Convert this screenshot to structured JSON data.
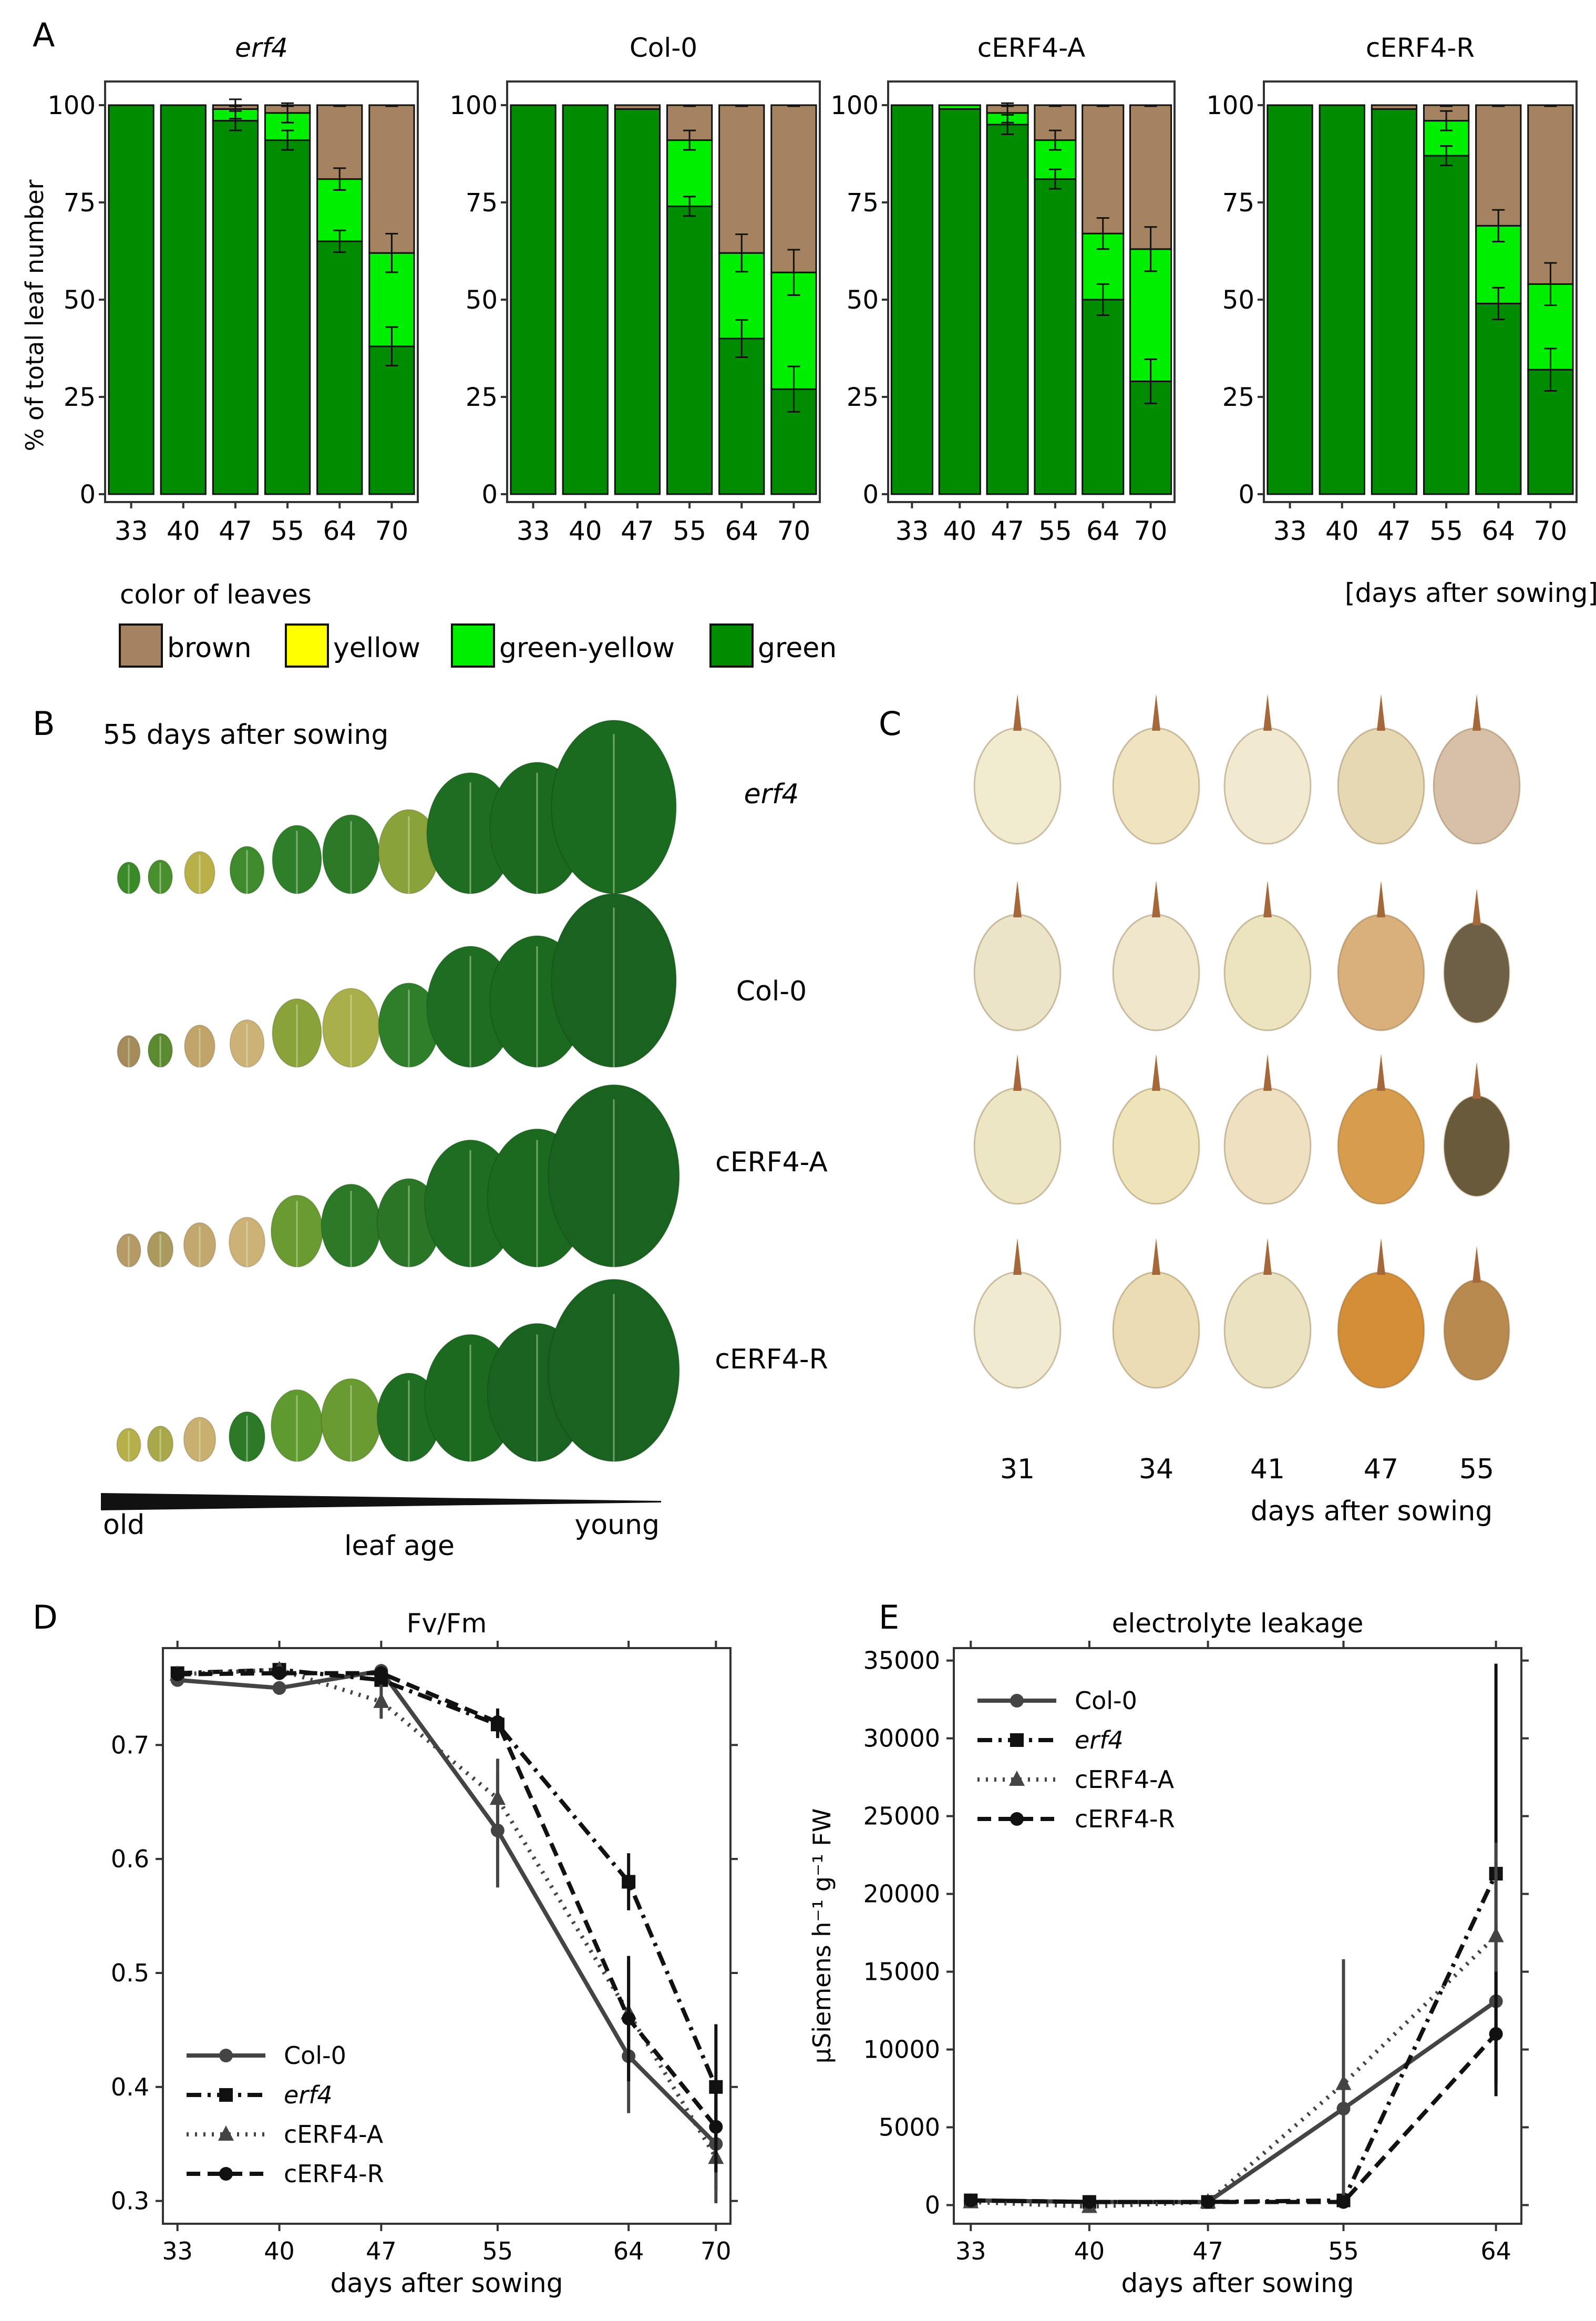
{
  "panel_letters": {
    "a": "A",
    "b": "B",
    "c": "C",
    "d": "D",
    "e": "E"
  },
  "colors": {
    "brown": "#a58360",
    "yellow": "#ffff00",
    "green_yellow": "#00ee00",
    "green": "#008c00",
    "line": "#111111",
    "gray_line": "#444444"
  },
  "panelA": {
    "ylabel": "% of total leaf number",
    "xlabel": "[days after sowing]",
    "legend_title": "color of leaves",
    "legend": [
      {
        "key": "brown",
        "label": "brown"
      },
      {
        "key": "yellow",
        "label": "yellow"
      },
      {
        "key": "green_yellow",
        "label": "green-yellow"
      },
      {
        "key": "green",
        "label": "green"
      }
    ]
  },
  "panelB": {
    "title": "55 days after sowing",
    "rows": [
      {
        "label": "erf4",
        "italic": true
      },
      {
        "label": "Col-0",
        "italic": false
      },
      {
        "label": "cERF4-A",
        "italic": false
      },
      {
        "label": "cERF4-R",
        "italic": false
      }
    ],
    "age_old": "old",
    "age_label": "leaf age",
    "age_young": "young"
  },
  "panelC": {
    "days": [
      "31",
      "34",
      "41",
      "47",
      "55"
    ],
    "xlabel": "days after sowing"
  },
  "chart_data": [
    {
      "type": "bar",
      "stacked": true,
      "title": "erf4",
      "title_italic": true,
      "categories": [
        "33",
        "40",
        "47",
        "55",
        "64",
        "70"
      ],
      "ylim": [
        0,
        100
      ],
      "yticks": [
        "0",
        "25",
        "50",
        "75",
        "100"
      ],
      "series": [
        {
          "name": "green",
          "values": [
            100,
            100,
            96,
            91,
            65,
            38
          ]
        },
        {
          "name": "green-yellow",
          "values": [
            0,
            0,
            3,
            7,
            16,
            24
          ]
        },
        {
          "name": "yellow",
          "values": [
            0,
            0,
            0,
            0,
            0,
            0
          ]
        },
        {
          "name": "brown",
          "values": [
            0,
            0,
            1,
            2,
            19,
            38
          ]
        }
      ]
    },
    {
      "type": "bar",
      "stacked": true,
      "title": "Col-0",
      "title_italic": false,
      "categories": [
        "33",
        "40",
        "47",
        "55",
        "64",
        "70"
      ],
      "ylim": [
        0,
        100
      ],
      "yticks": [
        "0",
        "25",
        "50",
        "75",
        "100"
      ],
      "series": [
        {
          "name": "green",
          "values": [
            100,
            100,
            99,
            74,
            40,
            27
          ]
        },
        {
          "name": "green-yellow",
          "values": [
            0,
            0,
            0,
            17,
            22,
            30
          ]
        },
        {
          "name": "yellow",
          "values": [
            0,
            0,
            0,
            0,
            0,
            0
          ]
        },
        {
          "name": "brown",
          "values": [
            0,
            0,
            1,
            9,
            38,
            43
          ]
        }
      ]
    },
    {
      "type": "bar",
      "stacked": true,
      "title": "cERF4-A",
      "title_italic": false,
      "categories": [
        "33",
        "40",
        "47",
        "55",
        "64",
        "70"
      ],
      "ylim": [
        0,
        100
      ],
      "yticks": [
        "0",
        "25",
        "50",
        "75",
        "100"
      ],
      "series": [
        {
          "name": "green",
          "values": [
            100,
            99,
            95,
            81,
            50,
            29
          ]
        },
        {
          "name": "green-yellow",
          "values": [
            0,
            1,
            3,
            10,
            17,
            34
          ]
        },
        {
          "name": "yellow",
          "values": [
            0,
            0,
            0,
            0,
            0,
            0
          ]
        },
        {
          "name": "brown",
          "values": [
            0,
            0,
            2,
            9,
            33,
            37
          ]
        }
      ]
    },
    {
      "type": "bar",
      "stacked": true,
      "title": "cERF4-R",
      "title_italic": false,
      "categories": [
        "33",
        "40",
        "47",
        "55",
        "64",
        "70"
      ],
      "ylim": [
        0,
        100
      ],
      "yticks": [
        "0",
        "25",
        "50",
        "75",
        "100"
      ],
      "series": [
        {
          "name": "green",
          "values": [
            100,
            100,
            99,
            87,
            49,
            32
          ]
        },
        {
          "name": "green-yellow",
          "values": [
            0,
            0,
            0,
            9,
            20,
            22
          ]
        },
        {
          "name": "yellow",
          "values": [
            0,
            0,
            0,
            0,
            0,
            0
          ]
        },
        {
          "name": "brown",
          "values": [
            0,
            0,
            1,
            4,
            31,
            46
          ]
        }
      ]
    },
    {
      "type": "line",
      "title": "Fv/Fm",
      "xlabel": "days after sowing",
      "ylabel": "",
      "x": [
        33,
        40,
        47,
        55,
        64,
        70
      ],
      "xticks": [
        "33",
        "40",
        "47",
        "55",
        "64",
        "70"
      ],
      "xlim": [
        32,
        71
      ],
      "ylim": [
        0.28,
        0.785
      ],
      "yticks": [
        "0.3",
        "0.4",
        "0.5",
        "0.6",
        "0.7"
      ],
      "series": [
        {
          "name": "Col-0",
          "italic": false,
          "dash": "",
          "marker": "circle",
          "color": "gray",
          "values": [
            0.757,
            0.75,
            0.765,
            0.625,
            0.427,
            0.35
          ],
          "err": [
            0.005,
            0.006,
            0.006,
            0.05,
            0.05,
            0.04
          ]
        },
        {
          "name": "erf4",
          "italic": true,
          "dash": "dashdot",
          "marker": "square",
          "color": "black",
          "values": [
            0.763,
            0.766,
            0.757,
            0.718,
            0.58,
            0.4
          ],
          "err": [
            0.006,
            0.006,
            0.006,
            0.012,
            0.025,
            0.055
          ]
        },
        {
          "name": "cERF4-A",
          "italic": false,
          "dash": "dot",
          "marker": "triangle",
          "color": "gray",
          "values": [
            0.762,
            0.766,
            0.738,
            0.653,
            0.465,
            0.338
          ],
          "err": [
            0.005,
            0.005,
            0.015,
            0.035,
            0.045,
            0.04
          ]
        },
        {
          "name": "cERF4-R",
          "italic": false,
          "dash": "dash",
          "marker": "circle",
          "color": "black",
          "values": [
            0.762,
            0.763,
            0.763,
            0.72,
            0.46,
            0.365
          ],
          "err": [
            0.005,
            0.005,
            0.006,
            0.012,
            0.055,
            0.04
          ]
        }
      ]
    },
    {
      "type": "line",
      "title": "electrolyte leakage",
      "xlabel": "days after sowing",
      "ylabel": "µSiemens h⁻¹ g⁻¹ FW",
      "x": [
        33,
        40,
        47,
        55,
        64
      ],
      "xticks": [
        "33",
        "40",
        "47",
        "55",
        "64"
      ],
      "xlim": [
        32,
        65.5
      ],
      "ylim": [
        -1200,
        35800
      ],
      "yticks": [
        "0",
        "5000",
        "10000",
        "15000",
        "20000",
        "25000",
        "30000",
        "35000"
      ],
      "series": [
        {
          "name": "Col-0",
          "italic": false,
          "dash": "",
          "marker": "circle",
          "color": "gray",
          "values": [
            300,
            200,
            200,
            6200,
            13100
          ],
          "err": [
            300,
            300,
            300,
            5500,
            5000
          ]
        },
        {
          "name": "erf4",
          "italic": true,
          "dash": "dashdot",
          "marker": "square",
          "color": "black",
          "values": [
            300,
            200,
            200,
            300,
            21300
          ],
          "err": [
            300,
            300,
            300,
            300,
            13500
          ]
        },
        {
          "name": "cERF4-A",
          "italic": false,
          "dash": "dot",
          "marker": "triangle",
          "color": "gray",
          "values": [
            200,
            -100,
            200,
            7800,
            17300
          ],
          "err": [
            300,
            300,
            300,
            8000,
            6000
          ]
        },
        {
          "name": "cERF4-R",
          "italic": false,
          "dash": "dash",
          "marker": "circle",
          "color": "black",
          "values": [
            300,
            200,
            200,
            200,
            11000
          ],
          "err": [
            300,
            300,
            300,
            300,
            4000
          ]
        }
      ]
    }
  ]
}
